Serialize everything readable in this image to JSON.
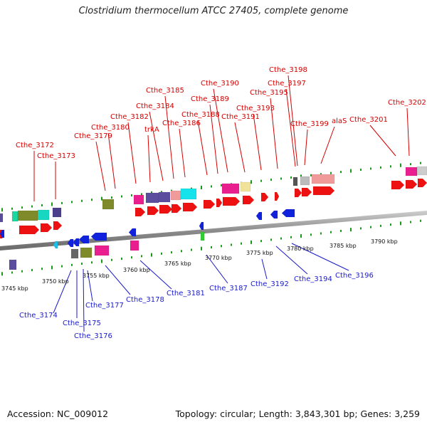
{
  "title": "Clostridium thermocellum ATCC 27405, complete genome",
  "footer": {
    "accession": "Accession: NC_009012",
    "topology": "Topology: circular; Length: 3,843,301 bp; Genes: 3,259"
  },
  "colors": {
    "top_label": "#d40000",
    "bottom_label": "#1a1acc",
    "backbone": "#8c8c8c",
    "tick": "#1a9a1a",
    "gene_red": "#ee1111",
    "gene_blue": "#1122dd"
  },
  "scale_ticks": [
    "3745 kbp",
    "3750 kbp",
    "3755 kbp",
    "3760 kbp",
    "3765 kbp",
    "3770 kbp",
    "3775 kbp",
    "3780 kbp",
    "3785 kbp",
    "3790 kbp"
  ],
  "top_labels": [
    "Cthe_3172",
    "Cthe_3173",
    "Cthe_3179",
    "Cthe_3180",
    "Cthe_3182",
    "Cthe_3184",
    "trkA",
    "Cthe_3185",
    "Cthe_3186",
    "Cthe_3188",
    "Cthe_3189",
    "Cthe_3190",
    "Cthe_3191",
    "Cthe_3193",
    "Cthe_3195",
    "Cthe_3197",
    "Cthe_3198",
    "Cthe_3199",
    "alaS",
    "Cthe_3201",
    "Cthe_3202"
  ],
  "bottom_labels": [
    "Cthe_3174",
    "Cthe_3175",
    "Cthe_3176",
    "Cthe_3177",
    "Cthe_3178",
    "Cthe_3181",
    "Cthe_3187",
    "Cthe_3192",
    "Cthe_3194",
    "Cthe_3196"
  ]
}
